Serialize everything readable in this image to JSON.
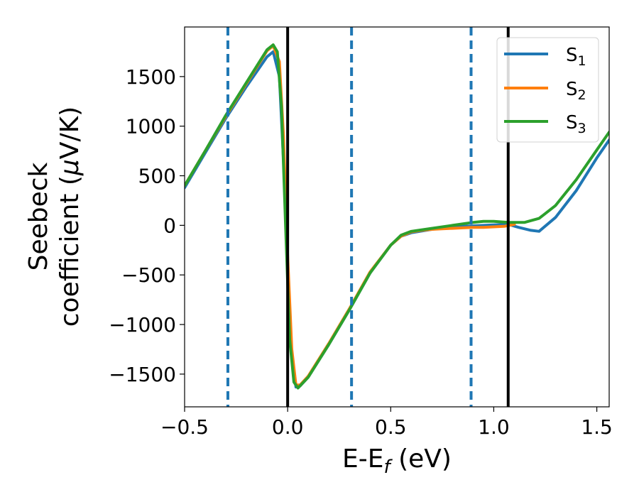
{
  "chart_data": {
    "type": "line",
    "xlabel": "E-E",
    "xlabel_sub": "f",
    "xlabel_unit": " (eV)",
    "ylabel_line1": "Seebeck",
    "ylabel_line2": "coefficient  (",
    "ylabel_mu": "μ",
    "ylabel_unit": "V/K)",
    "xlim": [
      -0.5,
      1.56
    ],
    "ylim": [
      -1830,
      2000
    ],
    "xticks": [
      -0.5,
      0.0,
      0.5,
      1.0,
      1.5
    ],
    "xtick_labels": [
      "−0.5",
      "0.0",
      "0.5",
      "1.0",
      "1.5"
    ],
    "yticks": [
      -1500,
      -1000,
      -500,
      0,
      500,
      1000,
      1500
    ],
    "ytick_labels": [
      "−1500",
      "−1000",
      "−500",
      "0",
      "500",
      "1000",
      "1500"
    ],
    "grid": false,
    "legend_position": "top-right",
    "series": [
      {
        "name": "S",
        "name_sub": "1",
        "color": "#1f77b4",
        "x": [
          -0.5,
          -0.4,
          -0.3,
          -0.2,
          -0.1,
          -0.07,
          -0.04,
          -0.02,
          0.0,
          0.02,
          0.04,
          0.06,
          0.1,
          0.2,
          0.3,
          0.4,
          0.5,
          0.55,
          0.6,
          0.7,
          0.8,
          0.9,
          1.0,
          1.07,
          1.12,
          1.18,
          1.22,
          1.3,
          1.4,
          1.5,
          1.56
        ],
        "y": [
          380,
          730,
          1080,
          1400,
          1700,
          1750,
          1500,
          650,
          -450,
          -1350,
          -1630,
          -1620,
          -1530,
          -1200,
          -850,
          -480,
          -200,
          -110,
          -75,
          -40,
          -15,
          -5,
          5,
          10,
          -20,
          -50,
          -60,
          80,
          350,
          680,
          860
        ]
      },
      {
        "name": "S",
        "name_sub": "2",
        "color": "#ff7f0e",
        "x": [
          -0.5,
          -0.4,
          -0.3,
          -0.2,
          -0.1,
          -0.07,
          -0.04,
          -0.02,
          0.0,
          0.02,
          0.04,
          0.06,
          0.1,
          0.2,
          0.3,
          0.4,
          0.5,
          0.55,
          0.6,
          0.65,
          0.7,
          0.75,
          0.8,
          0.85,
          0.9,
          0.95,
          1.0,
          1.05,
          1.1
        ],
        "y": [
          400,
          750,
          1100,
          1430,
          1760,
          1810,
          1650,
          900,
          -300,
          -1250,
          -1610,
          -1610,
          -1520,
          -1190,
          -840,
          -470,
          -200,
          -110,
          -65,
          -50,
          -40,
          -35,
          -30,
          -25,
          -20,
          -20,
          -15,
          -10,
          10
        ]
      },
      {
        "name": "S",
        "name_sub": "3",
        "color": "#2ca02c",
        "x": [
          -0.5,
          -0.4,
          -0.3,
          -0.2,
          -0.1,
          -0.07,
          -0.05,
          -0.03,
          -0.01,
          0.01,
          0.03,
          0.05,
          0.1,
          0.2,
          0.3,
          0.4,
          0.5,
          0.55,
          0.6,
          0.7,
          0.8,
          0.9,
          0.95,
          1.0,
          1.07,
          1.15,
          1.22,
          1.3,
          1.4,
          1.5,
          1.56
        ],
        "y": [
          400,
          750,
          1110,
          1440,
          1770,
          1820,
          1750,
          1200,
          0,
          -1150,
          -1580,
          -1640,
          -1530,
          -1200,
          -850,
          -480,
          -200,
          -100,
          -60,
          -30,
          0,
          30,
          40,
          40,
          30,
          30,
          70,
          200,
          460,
          760,
          940
        ]
      }
    ],
    "vlines_solid": [
      0.0,
      1.07
    ],
    "vlines_dashed": [
      -0.29,
      0.31,
      0.89
    ],
    "vline_solid_color": "#000000",
    "vline_dashed_color": "#1f77b4"
  }
}
